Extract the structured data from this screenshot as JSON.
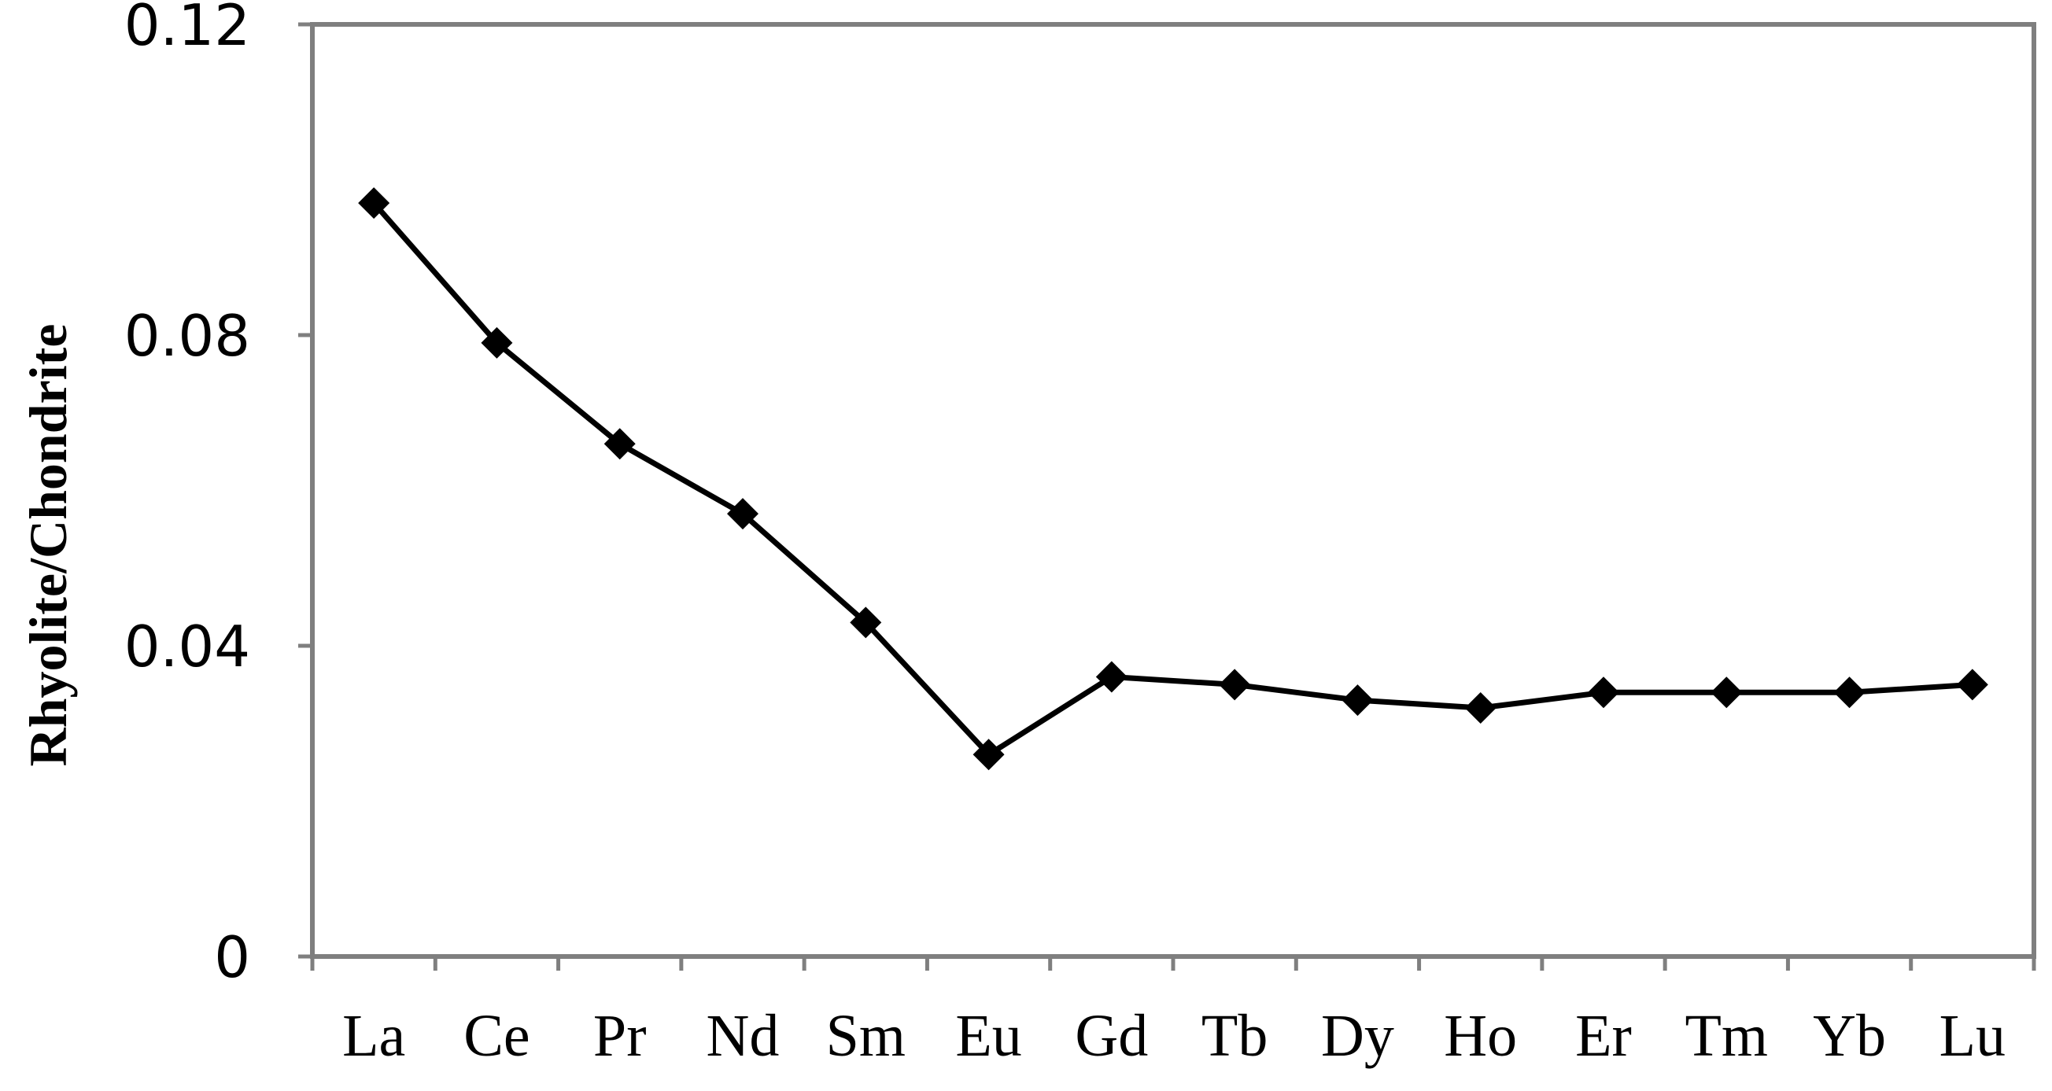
{
  "chart_data": {
    "type": "line",
    "title": "",
    "xlabel": "",
    "ylabel": "Rhyolite/Chondrite",
    "categories": [
      "La",
      "Ce",
      "Pr",
      "Nd",
      "Sm",
      "Eu",
      "Gd",
      "Tb",
      "Dy",
      "Ho",
      "Er",
      "Tm",
      "Yb",
      "Lu"
    ],
    "series": [
      {
        "values": [
          0.097,
          0.079,
          0.066,
          0.057,
          0.043,
          0.026,
          0.036,
          0.035,
          0.033,
          0.032,
          0.034,
          0.034,
          0.034,
          0.035
        ]
      }
    ],
    "ylim": [
      0,
      0.12
    ],
    "yticks": [
      "0",
      "0.04",
      "0.08",
      "0.12"
    ],
    "grid": false,
    "legend": "none",
    "marker": "diamond",
    "line_color": "#000000",
    "axis_color": "#7f7f7f"
  }
}
